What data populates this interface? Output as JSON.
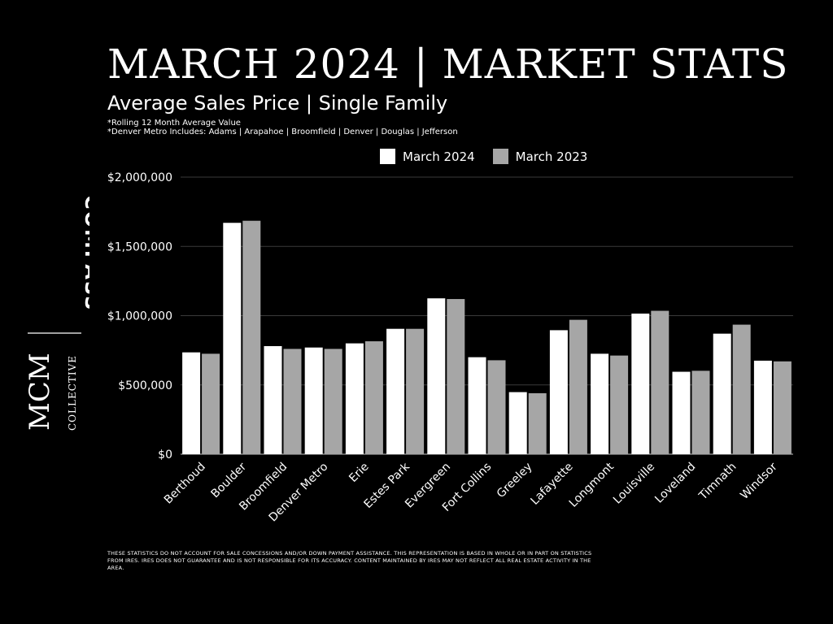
{
  "header": {
    "title": "MARCH 2024 | MARKET STATS",
    "subtitle": "Average Sales Price | Single Family",
    "note_1": "*Rolling 12 Month Average Value",
    "note_2": "*Denver Metro Includes: Adams | Arapahoe | Broomfield | Denver | Douglas | Jefferson"
  },
  "brand": {
    "compass": "COMPASS",
    "mcm": "MCM",
    "collective": "COLLECTIVE"
  },
  "disclaimer": "These statistics do not account for sale concessions and/or down payment assistance. This representation is based in whole or in part on statistics from IRES. IRES does not guarantee and is not responsible for its accuracy. Content maintained by IRES may not reflect all real estate activity in the area.",
  "chart_data": {
    "type": "bar",
    "title": "Average Sales Price | Single Family",
    "xlabel": "",
    "ylabel": "",
    "ylim": [
      0,
      2000000
    ],
    "yticks": [
      0,
      500000,
      1000000,
      1500000,
      2000000
    ],
    "ytick_labels": [
      "$0",
      "$500,000",
      "$1,000,000",
      "$1,500,000",
      "$2,000,000"
    ],
    "grid": true,
    "legend_position": "top-center",
    "categories": [
      "Berthoud",
      "Boulder",
      "Broomfield",
      "Denver Metro",
      "Erie",
      "Estes Park",
      "Evergreen",
      "Fort Collins",
      "Greeley",
      "Lafayette",
      "Longmont",
      "Louisville",
      "Loveland",
      "Timnath",
      "Windsor"
    ],
    "series": [
      {
        "name": "March 2024",
        "color": "#ffffff",
        "values": [
          735000,
          1670000,
          780000,
          770000,
          800000,
          905000,
          1125000,
          700000,
          448000,
          895000,
          725000,
          1015000,
          595000,
          870000,
          675000
        ]
      },
      {
        "name": "March 2023",
        "color": "#a6a6a6",
        "values": [
          725000,
          1685000,
          760000,
          760000,
          815000,
          905000,
          1120000,
          678000,
          440000,
          970000,
          712000,
          1035000,
          602000,
          935000,
          670000
        ]
      }
    ]
  }
}
